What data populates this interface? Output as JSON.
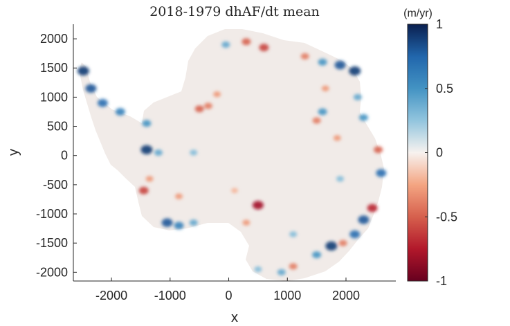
{
  "chart_data": {
    "type": "heatmap",
    "title": "2018-1979 dhAF/dt mean",
    "xlabel": "x",
    "ylabel": "y",
    "xlim": [
      -2650,
      2850
    ],
    "ylim": [
      -2150,
      2250
    ],
    "xticks": [
      -2000,
      -1000,
      0,
      1000,
      2000
    ],
    "xtick_labels": [
      "-2000",
      "-1000",
      "0",
      "1000",
      "2000"
    ],
    "yticks": [
      2000,
      1500,
      1000,
      500,
      0,
      -500,
      -1000,
      -1500,
      -2000
    ],
    "ytick_labels": [
      "2000",
      "1500",
      "1000",
      "500",
      "0",
      "-500",
      "-1000",
      "-1500",
      "-2000"
    ],
    "grid": false,
    "colorbar": {
      "label": "(m/yr)",
      "clim": [
        -1,
        1
      ],
      "ticks": [
        1,
        0.5,
        0,
        -0.5,
        -1
      ],
      "tick_labels": [
        "1",
        "0.5",
        "0",
        "-0.5",
        "-1"
      ],
      "colormap": [
        "#67001f",
        "#b2182b",
        "#d6604d",
        "#f4a582",
        "#f7f2ef",
        "#92c5de",
        "#4393c3",
        "#2166ac",
        "#0a1f4f"
      ]
    },
    "map_colors": {
      "interior": "#f1ebe8",
      "background": "#ffffff",
      "axis": "#262626"
    },
    "anomalies": [
      {
        "x": -2480,
        "y": 1450,
        "v": 0.9
      },
      {
        "x": -2350,
        "y": 1150,
        "v": 0.8
      },
      {
        "x": -2150,
        "y": 900,
        "v": 0.7
      },
      {
        "x": -1850,
        "y": 750,
        "v": 0.6
      },
      {
        "x": -1400,
        "y": 550,
        "v": 0.5
      },
      {
        "x": -1400,
        "y": 100,
        "v": 0.9
      },
      {
        "x": -1200,
        "y": 50,
        "v": 0.4
      },
      {
        "x": -1450,
        "y": -600,
        "v": -0.6
      },
      {
        "x": -1350,
        "y": -400,
        "v": -0.3
      },
      {
        "x": -1050,
        "y": -1150,
        "v": 0.8
      },
      {
        "x": -850,
        "y": -1200,
        "v": 0.6
      },
      {
        "x": -600,
        "y": -1150,
        "v": 0.4
      },
      {
        "x": -500,
        "y": 800,
        "v": -0.5
      },
      {
        "x": -350,
        "y": 850,
        "v": -0.4
      },
      {
        "x": -200,
        "y": 1050,
        "v": -0.3
      },
      {
        "x": -50,
        "y": 1900,
        "v": 0.4
      },
      {
        "x": 300,
        "y": 1950,
        "v": -0.5
      },
      {
        "x": 600,
        "y": 1850,
        "v": -0.6
      },
      {
        "x": 1300,
        "y": 1700,
        "v": -0.4
      },
      {
        "x": 1600,
        "y": 1600,
        "v": 0.5
      },
      {
        "x": 1900,
        "y": 1550,
        "v": 0.8
      },
      {
        "x": 2150,
        "y": 1450,
        "v": 0.9
      },
      {
        "x": 1650,
        "y": 1150,
        "v": -0.3
      },
      {
        "x": 2200,
        "y": 1000,
        "v": 0.4
      },
      {
        "x": 2300,
        "y": 650,
        "v": 0.5
      },
      {
        "x": 1600,
        "y": 750,
        "v": 0.5
      },
      {
        "x": 1500,
        "y": 600,
        "v": -0.4
      },
      {
        "x": 2550,
        "y": 100,
        "v": -0.5
      },
      {
        "x": 2600,
        "y": -300,
        "v": 0.7
      },
      {
        "x": 2450,
        "y": -900,
        "v": -0.7
      },
      {
        "x": 2300,
        "y": -1100,
        "v": 0.8
      },
      {
        "x": 2150,
        "y": -1350,
        "v": 0.7
      },
      {
        "x": 1950,
        "y": -1500,
        "v": -0.4
      },
      {
        "x": 1750,
        "y": -1550,
        "v": 0.9
      },
      {
        "x": 1500,
        "y": -1700,
        "v": 0.5
      },
      {
        "x": 1100,
        "y": -1900,
        "v": -0.4
      },
      {
        "x": 900,
        "y": -2000,
        "v": 0.4
      },
      {
        "x": 500,
        "y": -1950,
        "v": 0.3
      },
      {
        "x": 500,
        "y": -850,
        "v": -0.8
      },
      {
        "x": 300,
        "y": -1150,
        "v": -0.3
      },
      {
        "x": 100,
        "y": -600,
        "v": -0.2
      },
      {
        "x": -600,
        "y": 50,
        "v": 0.3
      },
      {
        "x": -850,
        "y": -700,
        "v": -0.3
      },
      {
        "x": 1900,
        "y": -400,
        "v": 0.3
      },
      {
        "x": 1850,
        "y": 300,
        "v": -0.3
      },
      {
        "x": 1100,
        "y": -1350,
        "v": 0.3
      }
    ]
  }
}
